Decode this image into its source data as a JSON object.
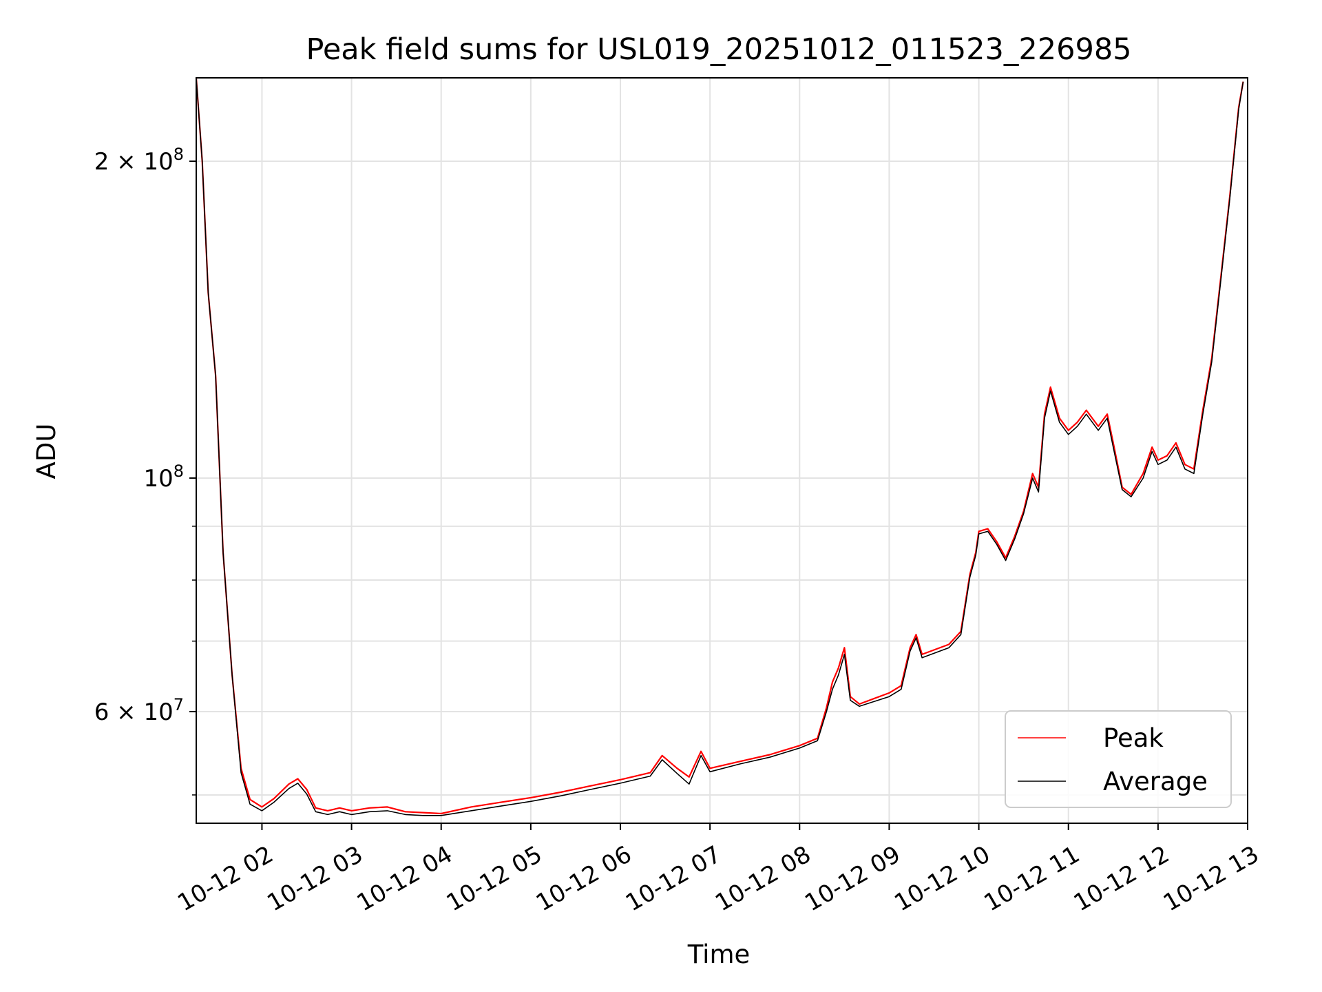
{
  "chart_data": {
    "type": "line",
    "title": "Peak field sums for USL019_20251012_011523_226985",
    "xlabel": "Time",
    "ylabel": "ADU",
    "yscale": "log",
    "ylim": [
      47000000,
      240000000
    ],
    "xlim": [
      "2025-10-12T01:16",
      "2025-10-12T13:00"
    ],
    "grid": true,
    "legend_position": "lower-right",
    "x_ticks": [
      {
        "t": "2025-10-12T02:00",
        "label": "10-12 02"
      },
      {
        "t": "2025-10-12T03:00",
        "label": "10-12 03"
      },
      {
        "t": "2025-10-12T04:00",
        "label": "10-12 04"
      },
      {
        "t": "2025-10-12T05:00",
        "label": "10-12 05"
      },
      {
        "t": "2025-10-12T06:00",
        "label": "10-12 06"
      },
      {
        "t": "2025-10-12T07:00",
        "label": "10-12 07"
      },
      {
        "t": "2025-10-12T08:00",
        "label": "10-12 08"
      },
      {
        "t": "2025-10-12T09:00",
        "label": "10-12 09"
      },
      {
        "t": "2025-10-12T10:00",
        "label": "10-12 10"
      },
      {
        "t": "2025-10-12T11:00",
        "label": "10-12 11"
      },
      {
        "t": "2025-10-12T12:00",
        "label": "10-12 12"
      },
      {
        "t": "2025-10-12T13:00",
        "label": "10-12 13"
      }
    ],
    "y_major_ticks": [
      {
        "value": 60000000,
        "mantissa": "6",
        "exponent": "7"
      },
      {
        "value": 100000000,
        "mantissa": "",
        "exponent": "8"
      },
      {
        "value": 200000000,
        "mantissa": "2",
        "exponent": "8"
      }
    ],
    "y_minor_ticks": [
      50000000,
      70000000,
      80000000,
      90000000
    ],
    "series": [
      {
        "name": "Peak",
        "color": "#ff0000",
        "points": [
          [
            "2025-10-12T01:16",
            240000000
          ],
          [
            "2025-10-12T01:20",
            200000000
          ],
          [
            "2025-10-12T01:24",
            150000000
          ],
          [
            "2025-10-12T01:29",
            125000000
          ],
          [
            "2025-10-12T01:34",
            85000000
          ],
          [
            "2025-10-12T01:40",
            65000000
          ],
          [
            "2025-10-12T01:46",
            53000000
          ],
          [
            "2025-10-12T01:52",
            49500000
          ],
          [
            "2025-10-12T02:00",
            48700000
          ],
          [
            "2025-10-12T02:08",
            49600000
          ],
          [
            "2025-10-12T02:18",
            51200000
          ],
          [
            "2025-10-12T02:24",
            51800000
          ],
          [
            "2025-10-12T02:30",
            50600000
          ],
          [
            "2025-10-12T02:36",
            48600000
          ],
          [
            "2025-10-12T02:44",
            48300000
          ],
          [
            "2025-10-12T02:52",
            48600000
          ],
          [
            "2025-10-12T03:00",
            48300000
          ],
          [
            "2025-10-12T03:12",
            48600000
          ],
          [
            "2025-10-12T03:24",
            48700000
          ],
          [
            "2025-10-12T03:36",
            48200000
          ],
          [
            "2025-10-12T03:48",
            48100000
          ],
          [
            "2025-10-12T04:00",
            48000000
          ],
          [
            "2025-10-12T04:20",
            48700000
          ],
          [
            "2025-10-12T04:40",
            49200000
          ],
          [
            "2025-10-12T05:00",
            49700000
          ],
          [
            "2025-10-12T05:20",
            50300000
          ],
          [
            "2025-10-12T05:40",
            51000000
          ],
          [
            "2025-10-12T06:00",
            51700000
          ],
          [
            "2025-10-12T06:20",
            52500000
          ],
          [
            "2025-10-12T06:28",
            54500000
          ],
          [
            "2025-10-12T06:38",
            53000000
          ],
          [
            "2025-10-12T06:46",
            52000000
          ],
          [
            "2025-10-12T06:54",
            55000000
          ],
          [
            "2025-10-12T07:00",
            53000000
          ],
          [
            "2025-10-12T07:20",
            53800000
          ],
          [
            "2025-10-12T07:40",
            54600000
          ],
          [
            "2025-10-12T08:00",
            55700000
          ],
          [
            "2025-10-12T08:12",
            56600000
          ],
          [
            "2025-10-12T08:18",
            60500000
          ],
          [
            "2025-10-12T08:22",
            64000000
          ],
          [
            "2025-10-12T08:26",
            66000000
          ],
          [
            "2025-10-12T08:30",
            69000000
          ],
          [
            "2025-10-12T08:34",
            62000000
          ],
          [
            "2025-10-12T08:40",
            61000000
          ],
          [
            "2025-10-12T09:00",
            62500000
          ],
          [
            "2025-10-12T09:08",
            63500000
          ],
          [
            "2025-10-12T09:14",
            69000000
          ],
          [
            "2025-10-12T09:18",
            71000000
          ],
          [
            "2025-10-12T09:22",
            68000000
          ],
          [
            "2025-10-12T09:40",
            69500000
          ],
          [
            "2025-10-12T09:48",
            71500000
          ],
          [
            "2025-10-12T09:54",
            81000000
          ],
          [
            "2025-10-12T09:58",
            85000000
          ],
          [
            "2025-10-12T10:00",
            89000000
          ],
          [
            "2025-10-12T10:06",
            89500000
          ],
          [
            "2025-10-12T10:12",
            87000000
          ],
          [
            "2025-10-12T10:18",
            84000000
          ],
          [
            "2025-10-12T10:24",
            88000000
          ],
          [
            "2025-10-12T10:30",
            93000000
          ],
          [
            "2025-10-12T10:36",
            101000000
          ],
          [
            "2025-10-12T10:40",
            98000000
          ],
          [
            "2025-10-12T10:44",
            115000000
          ],
          [
            "2025-10-12T10:48",
            122000000
          ],
          [
            "2025-10-12T10:54",
            114000000
          ],
          [
            "2025-10-12T11:00",
            111000000
          ],
          [
            "2025-10-12T11:06",
            113000000
          ],
          [
            "2025-10-12T11:12",
            116000000
          ],
          [
            "2025-10-12T11:20",
            112000000
          ],
          [
            "2025-10-12T11:26",
            115000000
          ],
          [
            "2025-10-12T11:30",
            108000000
          ],
          [
            "2025-10-12T11:36",
            98000000
          ],
          [
            "2025-10-12T11:42",
            96500000
          ],
          [
            "2025-10-12T11:50",
            101000000
          ],
          [
            "2025-10-12T11:56",
            107000000
          ],
          [
            "2025-10-12T12:00",
            104000000
          ],
          [
            "2025-10-12T12:06",
            105000000
          ],
          [
            "2025-10-12T12:12",
            108000000
          ],
          [
            "2025-10-12T12:18",
            103000000
          ],
          [
            "2025-10-12T12:24",
            102000000
          ],
          [
            "2025-10-12T12:30",
            116000000
          ],
          [
            "2025-10-12T12:36",
            130000000
          ],
          [
            "2025-10-12T12:42",
            155000000
          ],
          [
            "2025-10-12T12:48",
            185000000
          ],
          [
            "2025-10-12T12:54",
            225000000
          ],
          [
            "2025-10-12T12:57",
            238000000
          ]
        ]
      },
      {
        "name": "Average",
        "color": "#000000",
        "points": [
          [
            "2025-10-12T01:16",
            240000000
          ],
          [
            "2025-10-12T01:20",
            200000000
          ],
          [
            "2025-10-12T01:24",
            150000000
          ],
          [
            "2025-10-12T01:29",
            125000000
          ],
          [
            "2025-10-12T01:34",
            85000000
          ],
          [
            "2025-10-12T01:40",
            65000000
          ],
          [
            "2025-10-12T01:46",
            52500000
          ],
          [
            "2025-10-12T01:52",
            49000000
          ],
          [
            "2025-10-12T02:00",
            48300000
          ],
          [
            "2025-10-12T02:08",
            49200000
          ],
          [
            "2025-10-12T02:18",
            50700000
          ],
          [
            "2025-10-12T02:24",
            51300000
          ],
          [
            "2025-10-12T02:30",
            50100000
          ],
          [
            "2025-10-12T02:36",
            48200000
          ],
          [
            "2025-10-12T02:44",
            47900000
          ],
          [
            "2025-10-12T02:52",
            48200000
          ],
          [
            "2025-10-12T03:00",
            47900000
          ],
          [
            "2025-10-12T03:12",
            48200000
          ],
          [
            "2025-10-12T03:24",
            48300000
          ],
          [
            "2025-10-12T03:36",
            47900000
          ],
          [
            "2025-10-12T03:48",
            47800000
          ],
          [
            "2025-10-12T04:00",
            47800000
          ],
          [
            "2025-10-12T04:20",
            48300000
          ],
          [
            "2025-10-12T04:40",
            48800000
          ],
          [
            "2025-10-12T05:00",
            49300000
          ],
          [
            "2025-10-12T05:20",
            49900000
          ],
          [
            "2025-10-12T05:40",
            50600000
          ],
          [
            "2025-10-12T06:00",
            51300000
          ],
          [
            "2025-10-12T06:20",
            52100000
          ],
          [
            "2025-10-12T06:28",
            54000000
          ],
          [
            "2025-10-12T06:38",
            52400000
          ],
          [
            "2025-10-12T06:46",
            51200000
          ],
          [
            "2025-10-12T06:54",
            54500000
          ],
          [
            "2025-10-12T07:00",
            52600000
          ],
          [
            "2025-10-12T07:20",
            53500000
          ],
          [
            "2025-10-12T07:40",
            54300000
          ],
          [
            "2025-10-12T08:00",
            55400000
          ],
          [
            "2025-10-12T08:12",
            56300000
          ],
          [
            "2025-10-12T08:18",
            60000000
          ],
          [
            "2025-10-12T08:22",
            63000000
          ],
          [
            "2025-10-12T08:26",
            65000000
          ],
          [
            "2025-10-12T08:30",
            68000000
          ],
          [
            "2025-10-12T08:34",
            61500000
          ],
          [
            "2025-10-12T08:40",
            60700000
          ],
          [
            "2025-10-12T09:00",
            62000000
          ],
          [
            "2025-10-12T09:08",
            63000000
          ],
          [
            "2025-10-12T09:14",
            68500000
          ],
          [
            "2025-10-12T09:18",
            70500000
          ],
          [
            "2025-10-12T09:22",
            67500000
          ],
          [
            "2025-10-12T09:40",
            69000000
          ],
          [
            "2025-10-12T09:48",
            71000000
          ],
          [
            "2025-10-12T09:54",
            80500000
          ],
          [
            "2025-10-12T09:58",
            84500000
          ],
          [
            "2025-10-12T10:00",
            88500000
          ],
          [
            "2025-10-12T10:06",
            89000000
          ],
          [
            "2025-10-12T10:12",
            86500000
          ],
          [
            "2025-10-12T10:18",
            83500000
          ],
          [
            "2025-10-12T10:24",
            87500000
          ],
          [
            "2025-10-12T10:30",
            92500000
          ],
          [
            "2025-10-12T10:36",
            100000000
          ],
          [
            "2025-10-12T10:40",
            97000000
          ],
          [
            "2025-10-12T10:44",
            114000000
          ],
          [
            "2025-10-12T10:48",
            121000000
          ],
          [
            "2025-10-12T10:54",
            113000000
          ],
          [
            "2025-10-12T11:00",
            110000000
          ],
          [
            "2025-10-12T11:06",
            112000000
          ],
          [
            "2025-10-12T11:12",
            115000000
          ],
          [
            "2025-10-12T11:20",
            111000000
          ],
          [
            "2025-10-12T11:26",
            114000000
          ],
          [
            "2025-10-12T11:30",
            107000000
          ],
          [
            "2025-10-12T11:36",
            97500000
          ],
          [
            "2025-10-12T11:42",
            96000000
          ],
          [
            "2025-10-12T11:50",
            100000000
          ],
          [
            "2025-10-12T11:56",
            106000000
          ],
          [
            "2025-10-12T12:00",
            103000000
          ],
          [
            "2025-10-12T12:06",
            104000000
          ],
          [
            "2025-10-12T12:12",
            107000000
          ],
          [
            "2025-10-12T12:18",
            102000000
          ],
          [
            "2025-10-12T12:24",
            101000000
          ],
          [
            "2025-10-12T12:30",
            115000000
          ],
          [
            "2025-10-12T12:36",
            129000000
          ],
          [
            "2025-10-12T12:42",
            154000000
          ],
          [
            "2025-10-12T12:48",
            184000000
          ],
          [
            "2025-10-12T12:54",
            224000000
          ],
          [
            "2025-10-12T12:57",
            238000000
          ]
        ]
      }
    ]
  }
}
